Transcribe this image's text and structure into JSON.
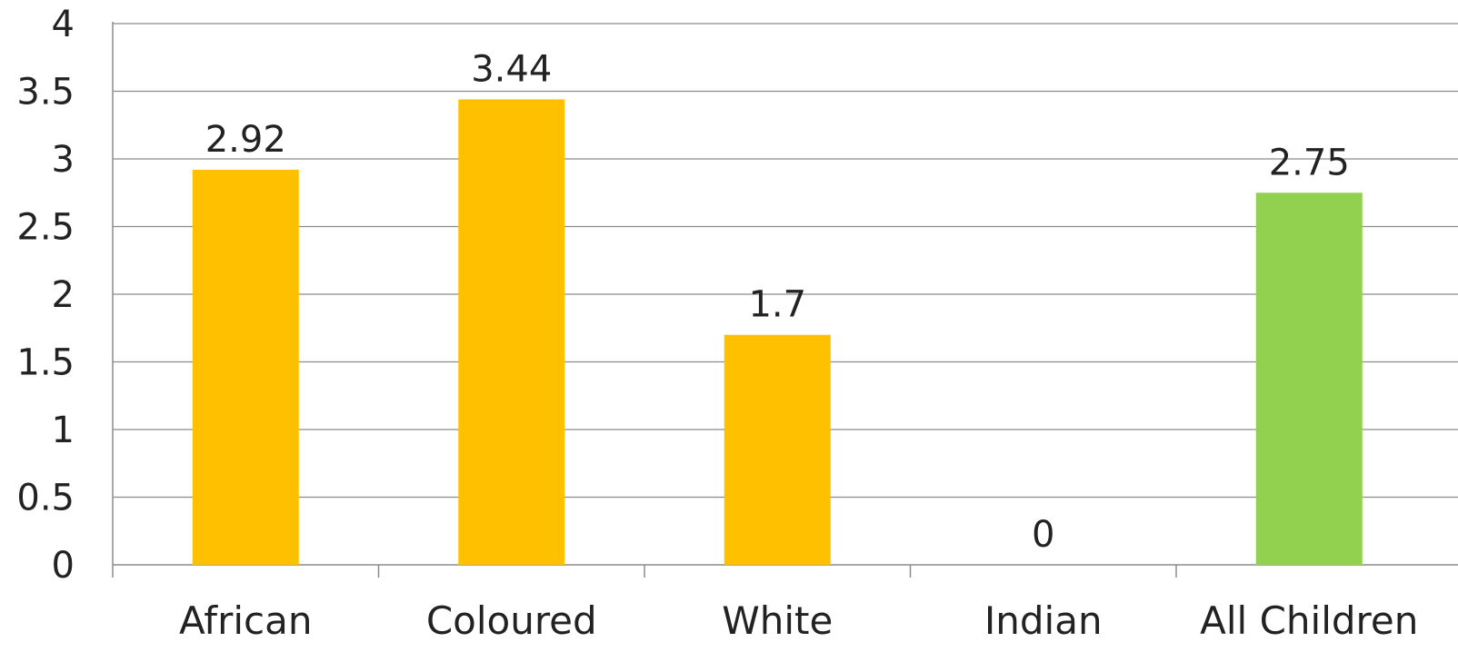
{
  "chart_data": {
    "type": "bar",
    "title": "",
    "xlabel": "",
    "ylabel": "",
    "categories": [
      "African",
      "Coloured",
      "White",
      "Indian",
      "All Children"
    ],
    "values": [
      2.92,
      3.44,
      1.7,
      0,
      2.75
    ],
    "value_labels": [
      "2.92",
      "3.44",
      "1.7",
      "0",
      "2.75"
    ],
    "bar_colors": [
      "#FFC000",
      "#FFC000",
      "#FFC000",
      "#FFC000",
      "#92D050"
    ],
    "ylim": [
      0,
      4
    ],
    "yticks": [
      0,
      0.5,
      1,
      1.5,
      2,
      2.5,
      3,
      3.5,
      4
    ],
    "ytick_labels": [
      "0",
      "0.5",
      "1",
      "1.5",
      "2",
      "2.5",
      "3",
      "3.5",
      "4"
    ],
    "grid": true,
    "gridline_color": "#8C8C8C",
    "text_color": "#222222",
    "legend": "none"
  }
}
